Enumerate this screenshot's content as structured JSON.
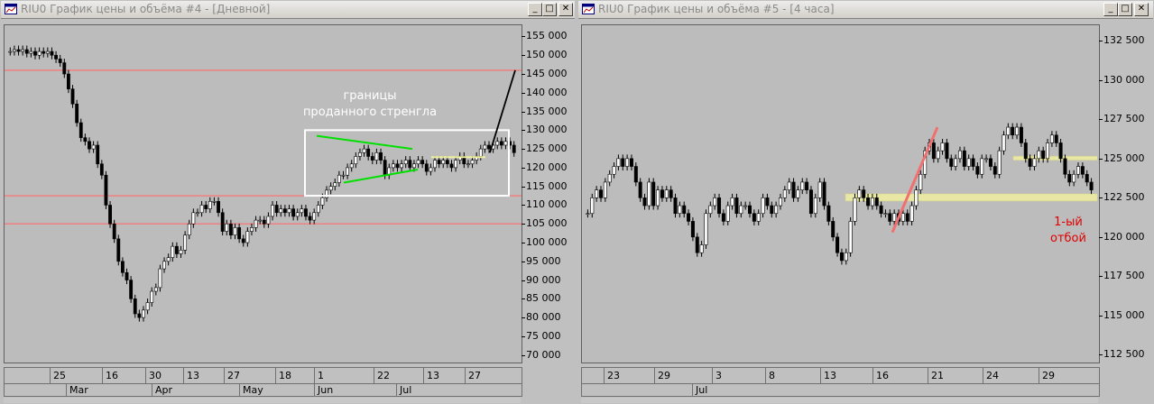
{
  "windows": [
    {
      "title": "RIU0 График цены и объёма #4 - [Дневной]",
      "buttons": {
        "minimize": "_",
        "maximize": "□",
        "close": "✕"
      },
      "y_labels": [
        "155 000",
        "150 000",
        "145 000",
        "140 000",
        "135 000",
        "130 000",
        "125 000",
        "120 000",
        "115 000",
        "110 000",
        "105 000",
        "100 000",
        "95 000",
        "90 000",
        "85 000",
        "80 000",
        "75 000",
        "70 000"
      ],
      "x_labels": [
        "25",
        "16",
        "30",
        "13",
        "27",
        "18",
        "1",
        "22",
        "13",
        "27"
      ],
      "month_labels": [
        "Mar",
        "Apr",
        "May",
        "Jun",
        "Jul"
      ],
      "annotation": "границы\nпроданного стренгла"
    },
    {
      "title": "RIU0 График цены и объёма #5 - [4 часа]",
      "buttons": {
        "minimize": "_",
        "maximize": "□",
        "close": "✕"
      },
      "y_labels": [
        "132 500",
        "130 000",
        "127 500",
        "125 000",
        "122 500",
        "120 000",
        "117 500",
        "115 000",
        "112 500"
      ],
      "x_labels": [
        "23",
        "29",
        "3",
        "8",
        "13",
        "16",
        "21",
        "24",
        "29"
      ],
      "month_labels": [
        "Jul"
      ],
      "annotation": "1-ый\nотбой"
    }
  ],
  "chart_data": [
    {
      "type": "candlestick",
      "title": "RIU0 График цены и объёма #4 - [Дневной]",
      "ylim": [
        68000,
        158000
      ],
      "y_ticks": [
        155000,
        150000,
        145000,
        140000,
        135000,
        130000,
        125000,
        120000,
        115000,
        110000,
        105000,
        100000,
        95000,
        90000,
        85000,
        80000,
        75000,
        70000
      ],
      "horizontal_lines": [
        146000,
        112500,
        105000
      ],
      "annotation_box": {
        "from_label": "1",
        "to_label": "27+",
        "y_range": [
          112500,
          130000
        ]
      },
      "closes": [
        151000,
        151500,
        151000,
        151500,
        150500,
        151000,
        150000,
        151000,
        150500,
        151000,
        150000,
        149000,
        148000,
        145000,
        141000,
        137000,
        132000,
        128000,
        127000,
        125000,
        126000,
        121000,
        118000,
        110000,
        105000,
        101000,
        95000,
        92000,
        90000,
        85000,
        81000,
        80000,
        82000,
        84000,
        87000,
        88000,
        93000,
        95000,
        96000,
        99000,
        97000,
        98000,
        102000,
        105000,
        108000,
        108000,
        110000,
        109000,
        111000,
        111000,
        108000,
        103000,
        105000,
        102000,
        104000,
        101000,
        100000,
        103000,
        104000,
        106000,
        106000,
        105000,
        107000,
        110000,
        108000,
        109000,
        108000,
        109000,
        107000,
        108000,
        109000,
        107000,
        106000,
        108000,
        110000,
        112000,
        114000,
        115000,
        116000,
        118000,
        118000,
        120000,
        121000,
        123000,
        124000,
        125000,
        123000,
        122000,
        124000,
        122000,
        118000,
        120000,
        121000,
        120000,
        121000,
        122000,
        120000,
        121000,
        122000,
        121000,
        119000,
        120000,
        122000,
        121000,
        122000,
        121000,
        120000,
        122000,
        123000,
        121000,
        121000,
        122000,
        123000,
        125000,
        126000,
        125000,
        126000,
        127000,
        126000,
        127000,
        126000,
        124000
      ]
    },
    {
      "type": "candlestick",
      "title": "RIU0 График цены и объёма #5 - [4 часа]",
      "ylim": [
        112000,
        133500
      ],
      "y_ticks": [
        132500,
        130000,
        127500,
        125000,
        122500,
        120000,
        117500,
        115000,
        112500
      ],
      "highlight_bands": [
        [
          122300,
          122750
        ],
        [
          124900,
          125150
        ]
      ],
      "closes": [
        121500,
        122500,
        123000,
        122500,
        123500,
        124000,
        124500,
        125000,
        124500,
        125000,
        124500,
        123500,
        122500,
        122000,
        123500,
        122000,
        123000,
        122500,
        123000,
        122500,
        121500,
        122000,
        121500,
        121000,
        120000,
        119000,
        119500,
        121500,
        122000,
        122500,
        121500,
        121000,
        122000,
        122500,
        121500,
        122000,
        122000,
        121500,
        121000,
        121500,
        122500,
        122000,
        121500,
        122000,
        122500,
        123000,
        123500,
        122500,
        123000,
        123500,
        123000,
        121500,
        122500,
        123500,
        122000,
        121000,
        120000,
        119000,
        118500,
        119000,
        121000,
        122500,
        123000,
        122500,
        122000,
        122500,
        122000,
        121500,
        121500,
        121000,
        121500,
        121000,
        121500,
        121000,
        122000,
        123000,
        124000,
        125500,
        126000,
        125000,
        125500,
        126000,
        125000,
        124500,
        125000,
        125500,
        124500,
        125000,
        124500,
        124000,
        125000,
        125000,
        124500,
        124000,
        125500,
        126500,
        127000,
        126500,
        127000,
        126000,
        125000,
        124500,
        125000,
        125500,
        125000,
        126000,
        126500,
        126000,
        125000,
        124000,
        123500,
        124000,
        124500,
        124000,
        123500,
        123000
      ]
    }
  ]
}
